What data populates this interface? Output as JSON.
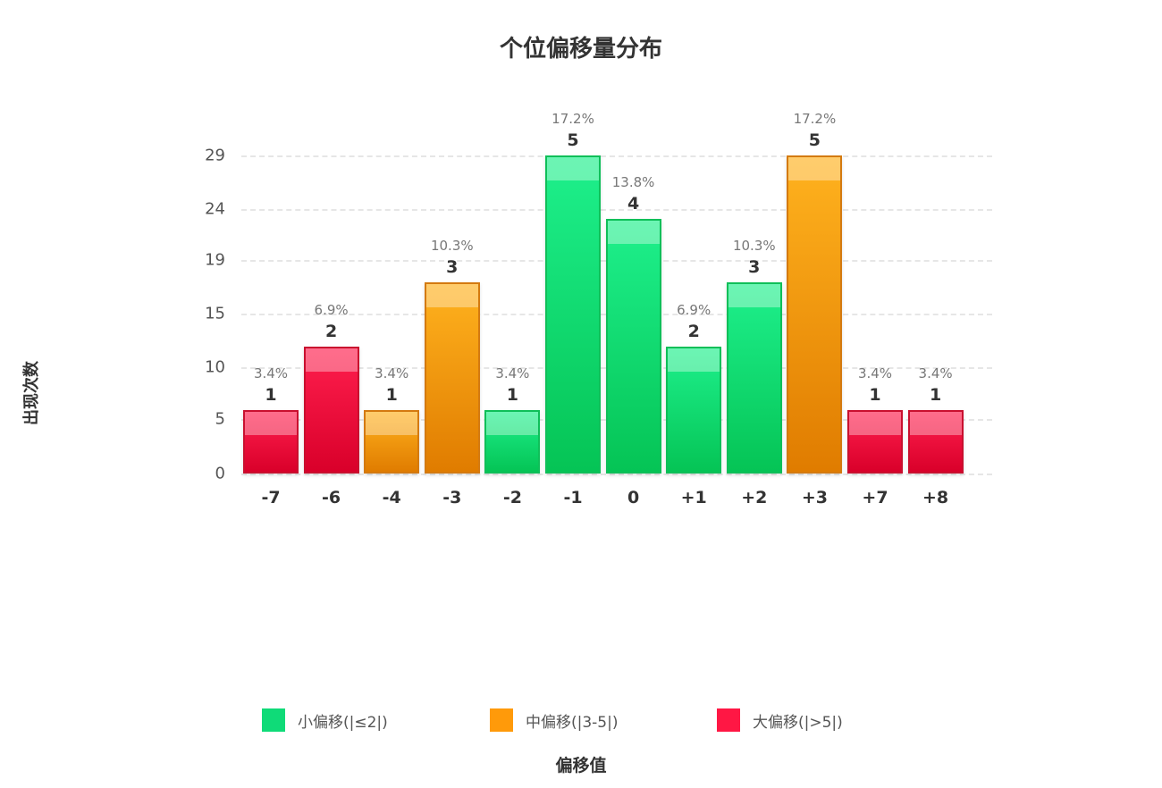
{
  "chart_data": {
    "type": "bar",
    "title": "个位偏移量分布",
    "xlabel": "偏移值",
    "ylabel": "出现次数",
    "categories": [
      "-7",
      "-6",
      "-4",
      "-3",
      "-2",
      "-1",
      "0",
      "+1",
      "+2",
      "+3",
      "+7",
      "+8"
    ],
    "values": [
      1,
      2,
      1,
      3,
      1,
      5,
      4,
      2,
      3,
      5,
      1,
      1
    ],
    "percentages": [
      "3.4%",
      "6.9%",
      "3.4%",
      "10.3%",
      "3.4%",
      "17.2%",
      "13.8%",
      "6.9%",
      "10.3%",
      "17.2%",
      "3.4%",
      "3.4%"
    ],
    "groups": [
      "large",
      "large",
      "mid",
      "mid",
      "small",
      "small",
      "small",
      "small",
      "small",
      "mid",
      "large",
      "large"
    ],
    "y_ticks": [
      "0",
      "5",
      "10",
      "15",
      "19",
      "24",
      "29"
    ],
    "ylim": [
      0,
      29
    ],
    "grid": true,
    "legend_position": "bottom",
    "legend": [
      {
        "key": "small",
        "label": "小偏移(|≤2|)",
        "color": "#0fdb78"
      },
      {
        "key": "mid",
        "label": "中偏移(|3-5|)",
        "color": "#ff9a0a"
      },
      {
        "key": "large",
        "label": "大偏移(|>5|)",
        "color": "#ff1744"
      }
    ]
  }
}
